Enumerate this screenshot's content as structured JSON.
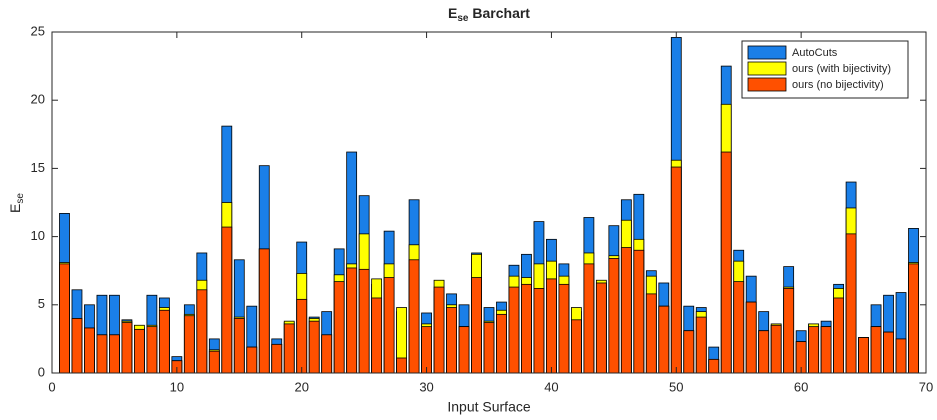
{
  "chart_data": {
    "type": "bar",
    "overlay": true,
    "title": [
      "E",
      "se",
      " Barchart"
    ],
    "xlabel": "Input Surface",
    "ylabel": [
      "E",
      "se"
    ],
    "x": [
      1,
      2,
      3,
      4,
      5,
      6,
      7,
      8,
      9,
      10,
      11,
      12,
      13,
      14,
      15,
      16,
      17,
      18,
      19,
      20,
      21,
      22,
      23,
      24,
      25,
      26,
      27,
      28,
      29,
      30,
      31,
      32,
      33,
      34,
      35,
      36,
      37,
      38,
      39,
      40,
      41,
      42,
      43,
      44,
      45,
      46,
      47,
      48,
      49,
      50,
      51,
      52,
      53,
      54,
      55,
      56,
      57,
      58,
      59,
      60,
      61,
      62,
      63,
      64,
      65,
      66,
      67,
      68,
      69
    ],
    "series": [
      {
        "name": "AutoCuts",
        "color": "#1a7fe8",
        "values": [
          11.7,
          6.1,
          5.0,
          5.7,
          5.7,
          3.9,
          3.3,
          5.7,
          5.5,
          1.2,
          5.0,
          8.8,
          2.5,
          18.1,
          8.3,
          4.9,
          15.2,
          2.5,
          3.7,
          9.6,
          4.1,
          4.5,
          9.1,
          16.2,
          13.0,
          6.5,
          10.4,
          4.5,
          12.7,
          4.4,
          6.0,
          5.8,
          5.0,
          8.8,
          4.8,
          5.2,
          7.9,
          8.7,
          11.1,
          9.8,
          8.0,
          4.5,
          11.4,
          6.6,
          10.8,
          12.7,
          13.1,
          7.5,
          6.6,
          24.6,
          4.9,
          4.8,
          1.9,
          22.5,
          9.0,
          7.1,
          4.5,
          3.5,
          7.8,
          3.1,
          3.6,
          3.8,
          6.5,
          14.0,
          2.6,
          5.0,
          5.7,
          5.9,
          10.6
        ]
      },
      {
        "name": "ours (with bijectivity)",
        "color": "#ffff00",
        "values": [
          8.1,
          4.0,
          3.3,
          2.8,
          2.8,
          3.8,
          3.5,
          3.5,
          4.8,
          0.9,
          4.3,
          6.8,
          1.7,
          12.5,
          4.1,
          1.9,
          9.1,
          2.1,
          3.8,
          7.3,
          4.0,
          2.8,
          7.2,
          8.0,
          10.2,
          6.9,
          8.0,
          4.8,
          9.4,
          3.6,
          6.8,
          5.0,
          3.4,
          8.7,
          3.8,
          4.6,
          7.1,
          7.0,
          8.0,
          8.2,
          7.1,
          4.8,
          8.8,
          6.8,
          8.6,
          11.2,
          9.8,
          7.1,
          4.9,
          15.6,
          3.1,
          4.5,
          1.0,
          19.7,
          8.2,
          5.2,
          3.1,
          3.6,
          6.3,
          2.3,
          3.6,
          3.4,
          6.2,
          12.1,
          2.6,
          3.4,
          3.0,
          2.5,
          8.1
        ]
      },
      {
        "name": "ours (no bijectivity)",
        "color": "#ff5000",
        "values": [
          8.0,
          4.0,
          3.3,
          2.8,
          2.8,
          3.7,
          3.2,
          3.4,
          4.6,
          0.9,
          4.2,
          6.1,
          1.6,
          10.7,
          4.0,
          1.9,
          9.1,
          2.1,
          3.6,
          5.4,
          3.8,
          2.8,
          6.7,
          7.7,
          7.6,
          5.5,
          7.0,
          1.1,
          8.3,
          3.4,
          6.3,
          4.8,
          3.4,
          7.0,
          3.7,
          4.3,
          6.3,
          6.5,
          6.2,
          6.9,
          6.5,
          3.9,
          8.0,
          6.6,
          8.4,
          9.2,
          9.0,
          5.8,
          4.9,
          15.1,
          3.1,
          4.1,
          1.0,
          16.2,
          6.7,
          5.2,
          3.1,
          3.5,
          6.2,
          2.3,
          3.4,
          3.4,
          5.5,
          10.2,
          2.6,
          3.4,
          3.0,
          2.5,
          8.0
        ]
      }
    ],
    "xlim": [
      0,
      70
    ],
    "xticks": [
      0,
      10,
      20,
      30,
      40,
      50,
      60,
      70
    ],
    "ylim": [
      0,
      25
    ],
    "yticks": [
      0,
      5,
      10,
      15,
      20,
      25
    ],
    "legend": "upper right"
  }
}
